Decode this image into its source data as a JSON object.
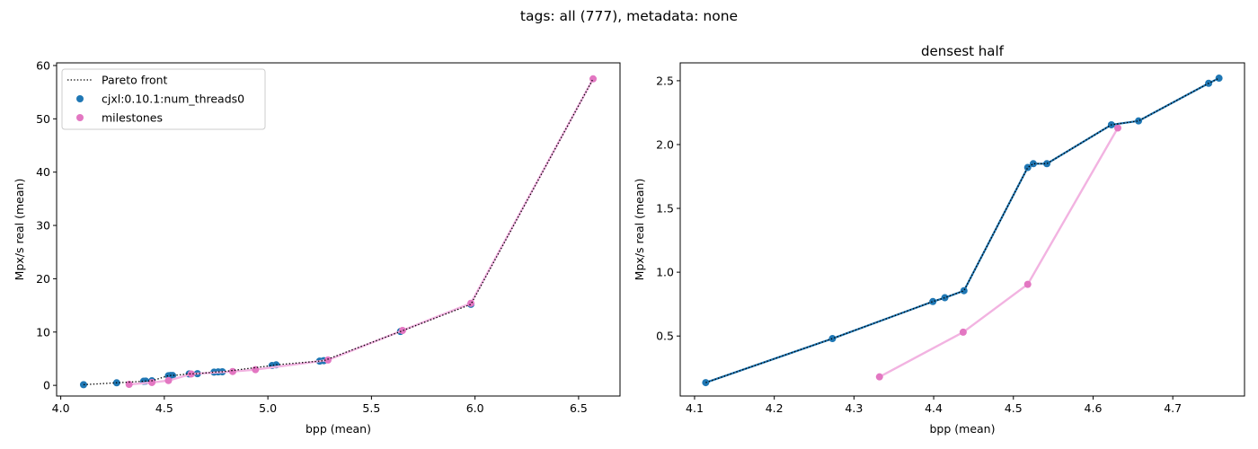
{
  "suptitle": "tags: all (777), metadata: none",
  "colors": {
    "primary": "#1f77b4",
    "milestones": "#e377c2",
    "pareto": "#000000",
    "milestones_line": "#f2b3e1"
  },
  "chart_data": [
    {
      "type": "scatter",
      "title": "",
      "xlabel": "bpp (mean)",
      "ylabel": "Mpx/s real (mean)",
      "xlim": [
        3.98,
        6.7
      ],
      "ylim": [
        -2.0,
        60.5
      ],
      "xticks": [
        4.0,
        4.5,
        5.0,
        5.5,
        6.0,
        6.5
      ],
      "xtick_labels": [
        "4.0",
        "4.5",
        "5.0",
        "5.5",
        "6.0",
        "6.5"
      ],
      "yticks": [
        0,
        10,
        20,
        30,
        40,
        50,
        60
      ],
      "ytick_labels": [
        "0",
        "10",
        "20",
        "30",
        "40",
        "50",
        "60"
      ],
      "legend": {
        "placement": "top-left",
        "entries": [
          "Pareto front",
          "cjxl:0.10.1:num_threads0",
          "milestones"
        ]
      },
      "series": [
        {
          "name": "Pareto front",
          "kind": "line-dotted",
          "x": [
            4.11,
            4.27,
            4.4,
            4.41,
            4.44,
            4.52,
            4.53,
            4.54,
            4.62,
            4.66,
            4.74,
            4.76,
            4.78,
            5.02,
            5.04,
            5.25,
            5.27,
            5.64,
            5.98,
            6.57
          ],
          "y": [
            0.13,
            0.48,
            0.77,
            0.8,
            0.86,
            1.82,
            1.85,
            1.85,
            2.15,
            2.19,
            2.48,
            2.52,
            2.55,
            3.72,
            3.85,
            4.55,
            4.63,
            10.1,
            15.2,
            57.5
          ]
        },
        {
          "name": "cjxl:0.10.1:num_threads0",
          "kind": "scatter",
          "x": [
            4.11,
            4.27,
            4.4,
            4.41,
            4.44,
            4.52,
            4.53,
            4.54,
            4.62,
            4.66,
            4.74,
            4.76,
            4.78,
            5.02,
            5.04,
            5.25,
            5.27,
            5.64,
            5.98
          ],
          "y": [
            0.13,
            0.48,
            0.77,
            0.8,
            0.86,
            1.82,
            1.85,
            1.85,
            2.15,
            2.19,
            2.48,
            2.52,
            2.55,
            3.72,
            3.85,
            4.55,
            4.63,
            10.1,
            15.2
          ]
        },
        {
          "name": "milestones",
          "kind": "line-scatter",
          "x": [
            4.33,
            4.44,
            4.52,
            4.63,
            4.83,
            4.94,
            5.29,
            5.65,
            5.98,
            6.57
          ],
          "y": [
            0.18,
            0.53,
            0.9,
            2.13,
            2.6,
            2.95,
            4.75,
            10.3,
            15.4,
            57.5
          ]
        }
      ]
    },
    {
      "type": "scatter",
      "title": "densest half",
      "xlabel": "bpp (mean)",
      "ylabel": "Mpx/s real (mean)",
      "xlim": [
        4.082,
        4.79
      ],
      "ylim": [
        0.03,
        2.64
      ],
      "xticks": [
        4.1,
        4.2,
        4.3,
        4.4,
        4.5,
        4.6,
        4.7
      ],
      "xtick_labels": [
        "4.1",
        "4.2",
        "4.3",
        "4.4",
        "4.5",
        "4.6",
        "4.7"
      ],
      "yticks": [
        0.5,
        1.0,
        1.5,
        2.0,
        2.5
      ],
      "ytick_labels": [
        "0.5",
        "1.0",
        "1.5",
        "2.0",
        "2.5"
      ],
      "series": [
        {
          "name": "milestones",
          "kind": "line-scatter",
          "x": [
            4.332,
            4.437,
            4.518,
            4.631
          ],
          "y": [
            0.18,
            0.53,
            0.905,
            2.13
          ]
        },
        {
          "name": "cjxl:0.10.1:num_threads0",
          "kind": "line-scatter",
          "x": [
            4.114,
            4.273,
            4.399,
            4.414,
            4.438,
            4.518,
            4.525,
            4.542,
            4.623,
            4.657,
            4.745,
            4.758
          ],
          "y": [
            0.135,
            0.48,
            0.77,
            0.8,
            0.855,
            1.82,
            1.85,
            1.85,
            2.155,
            2.185,
            2.48,
            2.52
          ]
        },
        {
          "name": "Pareto front",
          "kind": "line-dotted",
          "x": [
            4.114,
            4.273,
            4.399,
            4.414,
            4.438,
            4.518,
            4.525,
            4.542,
            4.623,
            4.657,
            4.745,
            4.758
          ],
          "y": [
            0.135,
            0.48,
            0.77,
            0.8,
            0.855,
            1.82,
            1.85,
            1.85,
            2.155,
            2.185,
            2.48,
            2.52
          ]
        }
      ]
    }
  ]
}
